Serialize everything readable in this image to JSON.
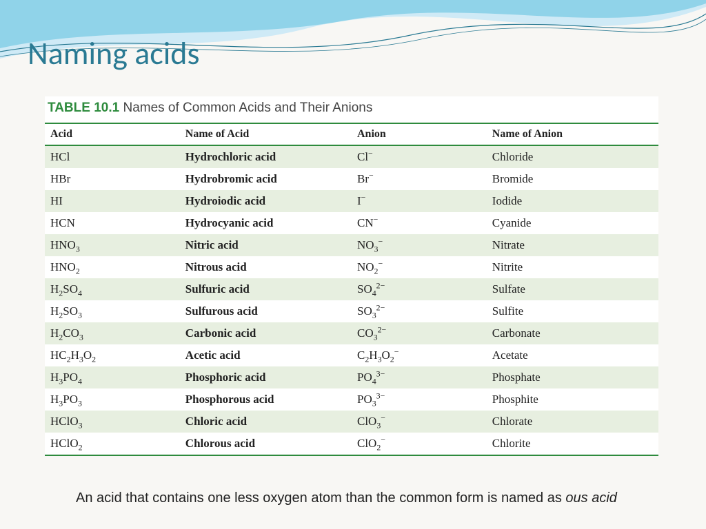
{
  "slide": {
    "title": "Naming acids",
    "table_caption_num": "TABLE 10.1",
    "table_caption_text": "Names of Common Acids and Their Anions",
    "footer_pre": "An acid that contains one less oxygen atom than the common form is named as ",
    "footer_ital": "ous acid"
  },
  "columns": [
    {
      "key": "acid",
      "label": "Acid"
    },
    {
      "key": "name",
      "label": "Name of Acid"
    },
    {
      "key": "anion",
      "label": "Anion"
    },
    {
      "key": "anion_name",
      "label": "Name of Anion"
    }
  ],
  "rows": [
    {
      "acid_html": "HCl",
      "name": "Hydrochloric acid",
      "anion_html": "Cl<sup>−</sup>",
      "anion_name": "Chloride"
    },
    {
      "acid_html": "HBr",
      "name": "Hydrobromic acid",
      "anion_html": "Br<sup>−</sup>",
      "anion_name": "Bromide"
    },
    {
      "acid_html": "HI",
      "name": "Hydroiodic acid",
      "anion_html": "I<sup>−</sup>",
      "anion_name": "Iodide"
    },
    {
      "acid_html": "HCN",
      "name": "Hydrocyanic acid",
      "anion_html": "CN<sup>−</sup>",
      "anion_name": "Cyanide"
    },
    {
      "acid_html": "HNO<sub>3</sub>",
      "name": "Nitric acid",
      "anion_html": "NO<sub>3</sub><sup>−</sup>",
      "anion_name": "Nitrate"
    },
    {
      "acid_html": "HNO<sub>2</sub>",
      "name": "Nitrous acid",
      "anion_html": "NO<sub>2</sub><sup>−</sup>",
      "anion_name": "Nitrite"
    },
    {
      "acid_html": "H<sub>2</sub>SO<sub>4</sub>",
      "name": "Sulfuric acid",
      "anion_html": "SO<sub>4</sub><sup>2−</sup>",
      "anion_name": "Sulfate"
    },
    {
      "acid_html": "H<sub>2</sub>SO<sub>3</sub>",
      "name": "Sulfurous acid",
      "anion_html": "SO<sub>3</sub><sup>2−</sup>",
      "anion_name": "Sulfite"
    },
    {
      "acid_html": "H<sub>2</sub>CO<sub>3</sub>",
      "name": "Carbonic acid",
      "anion_html": "CO<sub>3</sub><sup>2−</sup>",
      "anion_name": "Carbonate"
    },
    {
      "acid_html": "HC<sub>2</sub>H<sub>3</sub>O<sub>2</sub>",
      "name": "Acetic acid",
      "anion_html": "C<sub>2</sub>H<sub>3</sub>O<sub>2</sub><sup>−</sup>",
      "anion_name": "Acetate"
    },
    {
      "acid_html": "H<sub>3</sub>PO<sub>4</sub>",
      "name": "Phosphoric acid",
      "anion_html": "PO<sub>4</sub><sup>3−</sup>",
      "anion_name": "Phosphate"
    },
    {
      "acid_html": "H<sub>3</sub>PO<sub>3</sub>",
      "name": "Phosphorous acid",
      "anion_html": "PO<sub>3</sub><sup>3−</sup>",
      "anion_name": "Phosphite"
    },
    {
      "acid_html": "HClO<sub>3</sub>",
      "name": "Chloric acid",
      "anion_html": "ClO<sub>3</sub><sup>−</sup>",
      "anion_name": "Chlorate"
    },
    {
      "acid_html": "HClO<sub>2</sub>",
      "name": "Chlorous acid",
      "anion_html": "ClO<sub>2</sub><sup>−</sup>",
      "anion_name": "Chlorite"
    }
  ],
  "style": {
    "accent_teal": "#2a7a93",
    "accent_green": "#2e8b3d",
    "row_tint": "#e7efe0",
    "bg": "#f8f7f4",
    "wave_light": "#cfeaf6",
    "wave_mid": "#7fcde6",
    "wave_line": "#2a7a93"
  }
}
